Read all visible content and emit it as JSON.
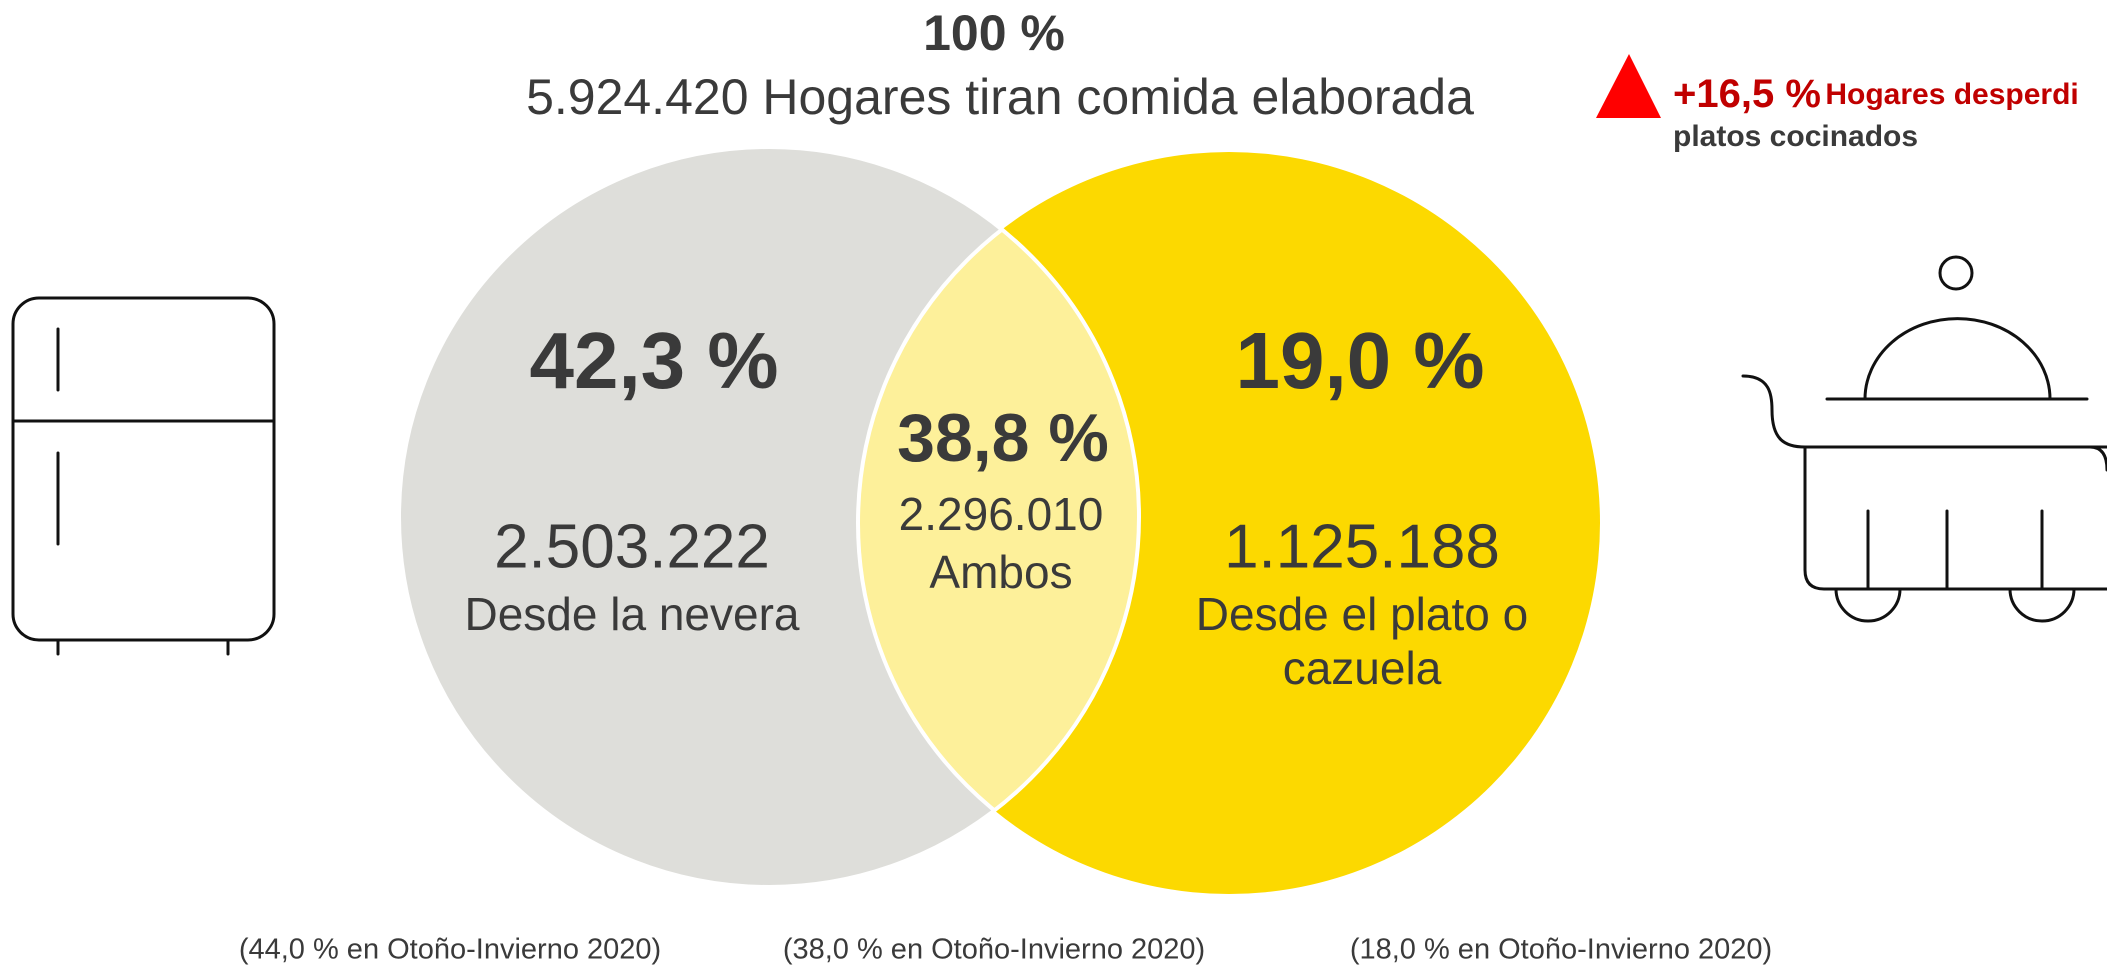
{
  "header": {
    "total_percent": "100 %",
    "total_label": "5.924.420 Hogares tiran comida elaborada"
  },
  "highlight": {
    "value": "+16,5 %",
    "label_line1": "Hogares desperdi",
    "label_line2": "platos cocinados"
  },
  "sets": {
    "left": {
      "percent": "42,3 %",
      "count": "2.503.222",
      "label": "Desde la nevera",
      "previous": "(44,0 % en Otoño-Invierno 2020)"
    },
    "both": {
      "percent": "38,8 %",
      "count": "2.296.010",
      "label": "Ambos",
      "previous": "(38,0 % en Otoño-Invierno 2020)"
    },
    "right": {
      "percent": "19,0 %",
      "count": "1.125.188",
      "label_line1": "Desde el plato o",
      "label_line2": "cazuela",
      "previous": "(18,0 % en Otoño-Invierno 2020)"
    }
  }
}
